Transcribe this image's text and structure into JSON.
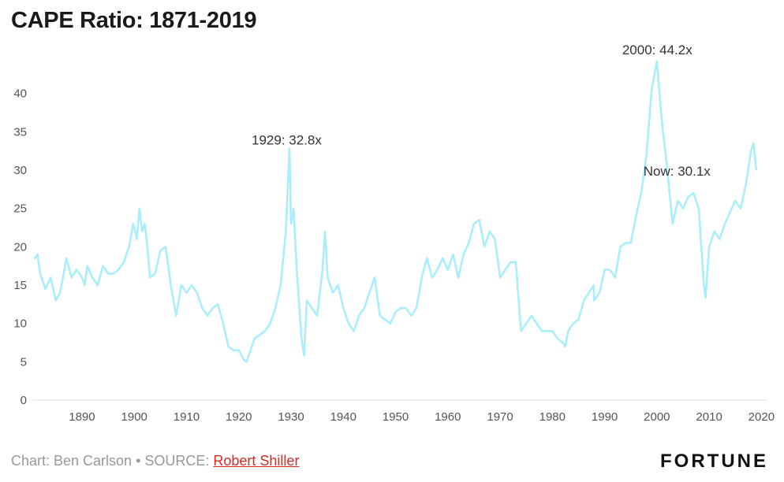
{
  "page": {
    "title": "CAPE Ratio: 1871-2019",
    "footer": {
      "credit": "Chart: Ben Carlson • SOURCE: ",
      "source_link": "Robert Shiller"
    },
    "logo": "FORTUNE"
  },
  "chart_data": {
    "type": "line",
    "title": "CAPE Ratio: 1871-2019",
    "xlabel": "",
    "ylabel": "",
    "xlim": [
      1880.5,
      2021
    ],
    "ylim": [
      0,
      45
    ],
    "x_ticks": [
      1890,
      1900,
      1910,
      1920,
      1930,
      1940,
      1950,
      1960,
      1970,
      1980,
      1990,
      2000,
      2010,
      2020
    ],
    "y_ticks": [
      0,
      5,
      10,
      15,
      20,
      25,
      30,
      35,
      40
    ],
    "grid": false,
    "line_color": "#a9eefa",
    "series": [
      {
        "x": [
          1881,
          1881.5,
          1882,
          1883,
          1884,
          1885,
          1885.8,
          1886.5,
          1887,
          1888,
          1889,
          1890,
          1890.5,
          1891,
          1892,
          1893,
          1894,
          1895,
          1896,
          1897,
          1898,
          1899,
          1899.8,
          1900.5,
          1901,
          1901.5,
          1902,
          1902.5,
          1903,
          1904,
          1905,
          1906,
          1907,
          1908,
          1909,
          1910,
          1911,
          1912,
          1913,
          1914,
          1915,
          1916,
          1917,
          1918,
          1919,
          1920,
          1921,
          1921.5,
          1922,
          1923,
          1924,
          1925,
          1926,
          1927,
          1928,
          1929,
          1929.7,
          1930,
          1930.5,
          1931,
          1931.5,
          1932,
          1932.5,
          1933,
          1934,
          1935,
          1936,
          1936.5,
          1937,
          1938,
          1939,
          1940,
          1941,
          1942,
          1943,
          1944,
          1945,
          1946,
          1947,
          1948,
          1949,
          1950,
          1951,
          1952,
          1953,
          1954,
          1955,
          1956,
          1957,
          1958,
          1959,
          1960,
          1961,
          1962,
          1963,
          1964,
          1965,
          1966,
          1967,
          1968,
          1969,
          1970,
          1971,
          1972,
          1973,
          1974,
          1975,
          1976,
          1977,
          1978,
          1979,
          1980,
          1981,
          1982,
          1982.5,
          1983,
          1984,
          1985,
          1986,
          1987,
          1987.9,
          1988,
          1989,
          1990,
          1991,
          1992,
          1993,
          1994,
          1995,
          1996,
          1997,
          1998,
          1999,
          2000,
          2001,
          2002,
          2003,
          2004,
          2005,
          2006,
          2007,
          2008,
          2009,
          2009.3,
          2010,
          2011,
          2012,
          2013,
          2014,
          2015,
          2016,
          2017,
          2018,
          2018.5,
          2019
        ],
        "y": [
          18.5,
          19,
          16.5,
          14.5,
          16,
          13,
          14,
          16.5,
          18.5,
          16,
          17,
          16,
          15,
          17.5,
          16,
          15,
          17.5,
          16.5,
          16.5,
          17,
          18,
          20,
          23,
          21,
          25,
          22,
          23,
          20,
          16,
          16.5,
          19.5,
          20,
          15,
          11,
          15,
          14,
          15,
          14,
          12,
          11,
          12,
          12.5,
          10,
          7,
          6.5,
          6.5,
          5.2,
          5,
          6,
          8,
          8.5,
          9,
          10,
          12,
          15,
          22,
          32.8,
          23,
          25,
          18,
          13,
          8,
          5.8,
          13,
          12,
          11,
          17,
          22,
          16,
          14,
          15,
          12,
          10,
          9,
          11,
          12,
          14,
          16,
          11,
          10.5,
          10,
          11.5,
          12,
          12,
          11,
          12,
          16,
          18.5,
          16,
          17,
          18.5,
          17,
          19,
          16,
          19,
          20.5,
          23,
          23.5,
          20,
          22,
          21,
          16,
          17,
          18,
          18,
          9,
          10,
          11,
          10,
          9,
          9,
          9,
          8,
          7.5,
          7,
          9,
          10,
          10.5,
          13,
          14,
          15,
          13,
          14,
          17,
          17,
          16,
          20,
          20.5,
          20.5,
          24,
          27,
          32,
          40.5,
          44.2,
          36,
          30,
          23,
          26,
          25,
          26.5,
          27,
          25,
          15,
          13.3,
          20,
          22,
          21,
          23,
          24.5,
          26,
          25,
          28,
          32.5,
          33.5,
          30.1
        ]
      }
    ],
    "annotations": [
      {
        "x": 1929.7,
        "y": 32.8,
        "label": "1929: 32.8x"
      },
      {
        "x": 2000,
        "y": 44.2,
        "label": "2000: 44.2x"
      },
      {
        "x": 2019,
        "y": 30.1,
        "label": "Now: 30.1x"
      }
    ]
  }
}
